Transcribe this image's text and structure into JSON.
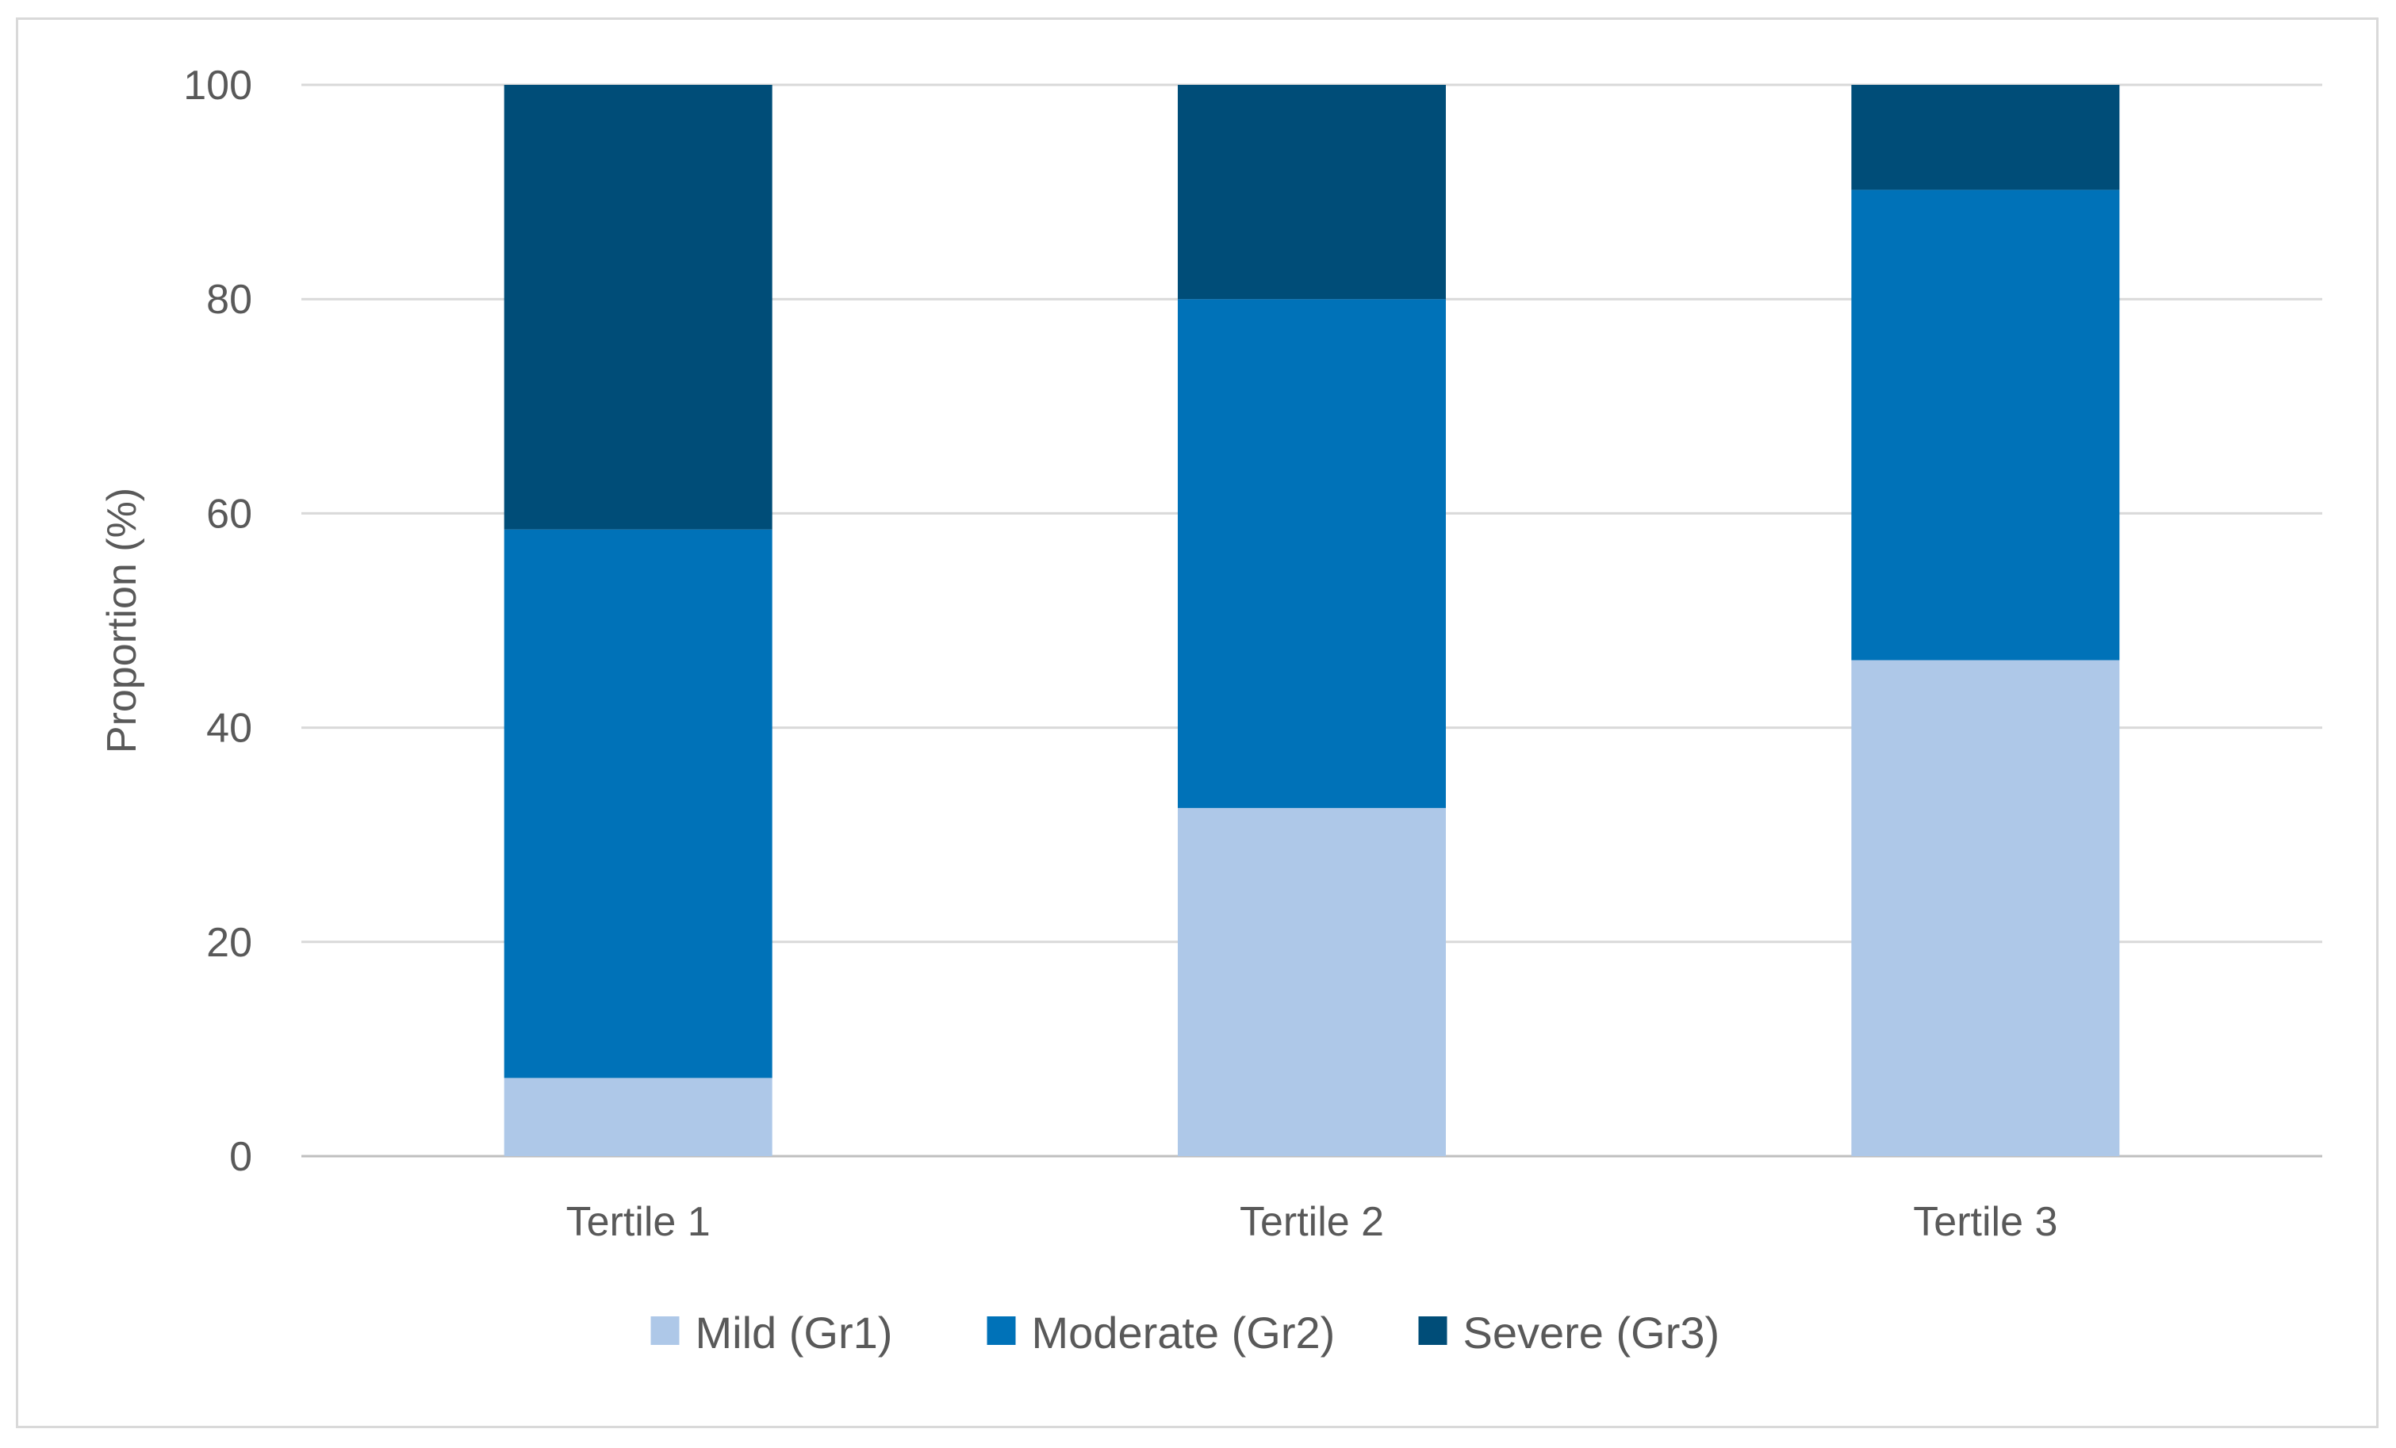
{
  "chart_data": {
    "type": "bar",
    "stacked": true,
    "title": "",
    "xlabel": "",
    "ylabel": "Proportion (%)",
    "ylim": [
      0,
      100
    ],
    "yticks": [
      0,
      20,
      40,
      60,
      80,
      100
    ],
    "grid": true,
    "legend_position": "bottom",
    "categories": [
      "Tertile 1",
      "Tertile 2",
      "Tertile 3"
    ],
    "series": [
      {
        "name": "Mild (Gr1)",
        "color": "#aec8e8",
        "values": [
          7.3,
          32.5,
          46.3
        ]
      },
      {
        "name": "Moderate (Gr2)",
        "color": "#0072b8",
        "values": [
          51.2,
          47.5,
          43.9
        ]
      },
      {
        "name": "Severe (Gr3)",
        "color": "#004d78",
        "values": [
          41.5,
          20.0,
          9.8
        ]
      }
    ]
  }
}
